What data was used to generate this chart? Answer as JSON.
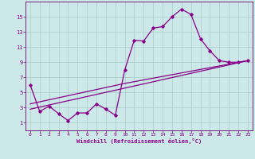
{
  "xlabel": "Windchill (Refroidissement éolien,°C)",
  "bg_color": "#cce8e8",
  "line_color": "#880088",
  "grid_color": "#aacccc",
  "spine_color": "#660066",
  "xlim": [
    -0.5,
    23.5
  ],
  "ylim": [
    0,
    17
  ],
  "xticks": [
    0,
    1,
    2,
    3,
    4,
    5,
    6,
    7,
    8,
    9,
    10,
    11,
    12,
    13,
    14,
    15,
    16,
    17,
    18,
    19,
    20,
    21,
    22,
    23
  ],
  "yticks": [
    1,
    3,
    5,
    7,
    9,
    11,
    13,
    15
  ],
  "series1_x": [
    0,
    1,
    2,
    3,
    4,
    5,
    6,
    7,
    8,
    9,
    10,
    11,
    12,
    13,
    14,
    15,
    16,
    17,
    18,
    19,
    20,
    21,
    22,
    23
  ],
  "series1_y": [
    6.0,
    2.5,
    3.2,
    2.2,
    1.3,
    2.3,
    2.3,
    3.5,
    2.8,
    2.0,
    8.0,
    11.9,
    11.8,
    13.5,
    13.7,
    15.0,
    16.0,
    15.3,
    12.1,
    10.5,
    9.2,
    9.0,
    9.0,
    9.2
  ],
  "series2_x": [
    0,
    23
  ],
  "series2_y": [
    2.8,
    9.2
  ],
  "series3_x": [
    0,
    10,
    23
  ],
  "series3_y": [
    3.5,
    6.2,
    9.2
  ]
}
